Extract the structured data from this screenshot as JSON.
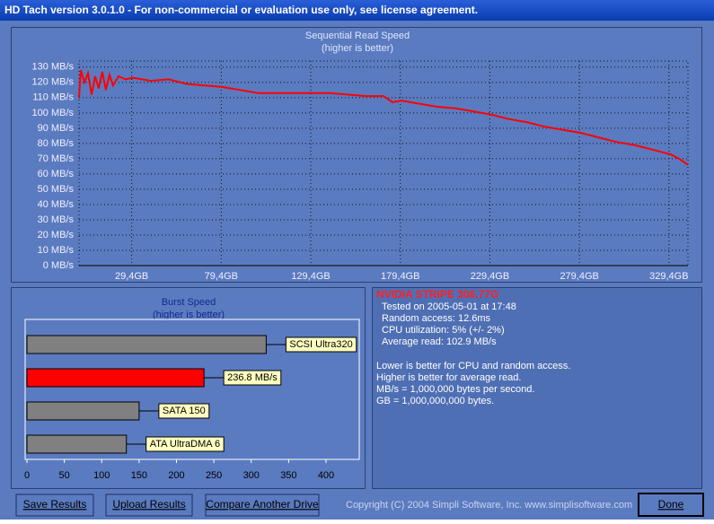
{
  "window_title": "HD Tach version 3.0.1.0  - For non-commercial or evaluation use only, see license agreement.",
  "chart_data": [
    {
      "type": "line",
      "title": "Sequential Read Speed",
      "subtitle": "(higher is better)",
      "color": "#ff0000",
      "grid": true,
      "x": [
        0,
        1,
        3,
        5,
        7,
        9,
        11,
        13,
        15,
        17,
        19,
        22,
        26,
        30,
        40,
        50,
        60,
        70,
        80,
        90,
        100,
        105,
        110,
        120,
        130,
        140,
        150,
        160,
        170,
        175,
        180,
        190,
        200,
        210,
        220,
        230,
        240,
        250,
        260,
        270,
        280,
        290,
        300,
        310,
        320,
        330,
        335,
        340
      ],
      "values": [
        110,
        128,
        120,
        126,
        112,
        124,
        116,
        127,
        115,
        125,
        118,
        124,
        122,
        123,
        121,
        122,
        119,
        118,
        117,
        115,
        113,
        113,
        113,
        113,
        113,
        113,
        112,
        111,
        111,
        107,
        108,
        106,
        104,
        103,
        101,
        99,
        96,
        94,
        91,
        89,
        87,
        84,
        81,
        79,
        76,
        73,
        70,
        66
      ],
      "xlim": [
        0,
        340
      ],
      "ylim": [
        0,
        134
      ],
      "xticks": [
        {
          "value": 29.4,
          "label": "29,4GB"
        },
        {
          "value": 79.4,
          "label": "79,4GB"
        },
        {
          "value": 129.4,
          "label": "129,4GB"
        },
        {
          "value": 179.4,
          "label": "179,4GB"
        },
        {
          "value": 229.4,
          "label": "229,4GB"
        },
        {
          "value": 279.4,
          "label": "279,4GB"
        },
        {
          "value": 329.4,
          "label": "329,4GB"
        }
      ],
      "yticks": [
        {
          "value": 0,
          "label": "0 MB/s"
        },
        {
          "value": 10,
          "label": "10 MB/s"
        },
        {
          "value": 20,
          "label": "20 MB/s"
        },
        {
          "value": 30,
          "label": "30 MB/s"
        },
        {
          "value": 40,
          "label": "40 MB/s"
        },
        {
          "value": 50,
          "label": "50 MB/s"
        },
        {
          "value": 60,
          "label": "60 MB/s"
        },
        {
          "value": 70,
          "label": "70 MB/s"
        },
        {
          "value": 80,
          "label": "80 MB/s"
        },
        {
          "value": 90,
          "label": "90 MB/s"
        },
        {
          "value": 100,
          "label": "100 MB/s"
        },
        {
          "value": 110,
          "label": "110 MB/s"
        },
        {
          "value": 120,
          "label": "120 MB/s"
        },
        {
          "value": 130,
          "label": "130 MB/s"
        }
      ]
    },
    {
      "type": "hbar",
      "title": "Burst Speed",
      "subtitle": "(higher is better)",
      "categories": [
        "SCSI Ultra320",
        null,
        "SATA 150",
        "ATA UltraDMA 6"
      ],
      "values": [
        320,
        236.8,
        150,
        133
      ],
      "value_labels": [
        null,
        "236.8 MB/s",
        null,
        null
      ],
      "colors": [
        "#808080",
        "#ff0000",
        "#808080",
        "#808080"
      ],
      "xlim": [
        0,
        400
      ],
      "xticks": [
        0,
        50,
        100,
        150,
        200,
        250,
        300,
        350,
        400
      ]
    }
  ],
  "info": {
    "drive": "NVIDIA STRIPE 306.77G",
    "lines": [
      "Tested on 2005-05-01 at 17:48",
      "Random access: 12.6ms",
      "CPU utilization: 5% (+/- 2%)",
      "Average read: 102.9 MB/s"
    ],
    "notes": [
      "Lower is better for CPU and random access.",
      "Higher is better for average read.",
      "MB/s = 1,000,000 bytes per second.",
      "GB = 1,000,000,000 bytes."
    ]
  },
  "buttons": [
    "Save Results",
    "Upload Results",
    "Compare Another Drive"
  ],
  "copyright": "Copyright (C) 2004 Simpli Software, Inc. www.simplisoftware.com",
  "done": "Done"
}
